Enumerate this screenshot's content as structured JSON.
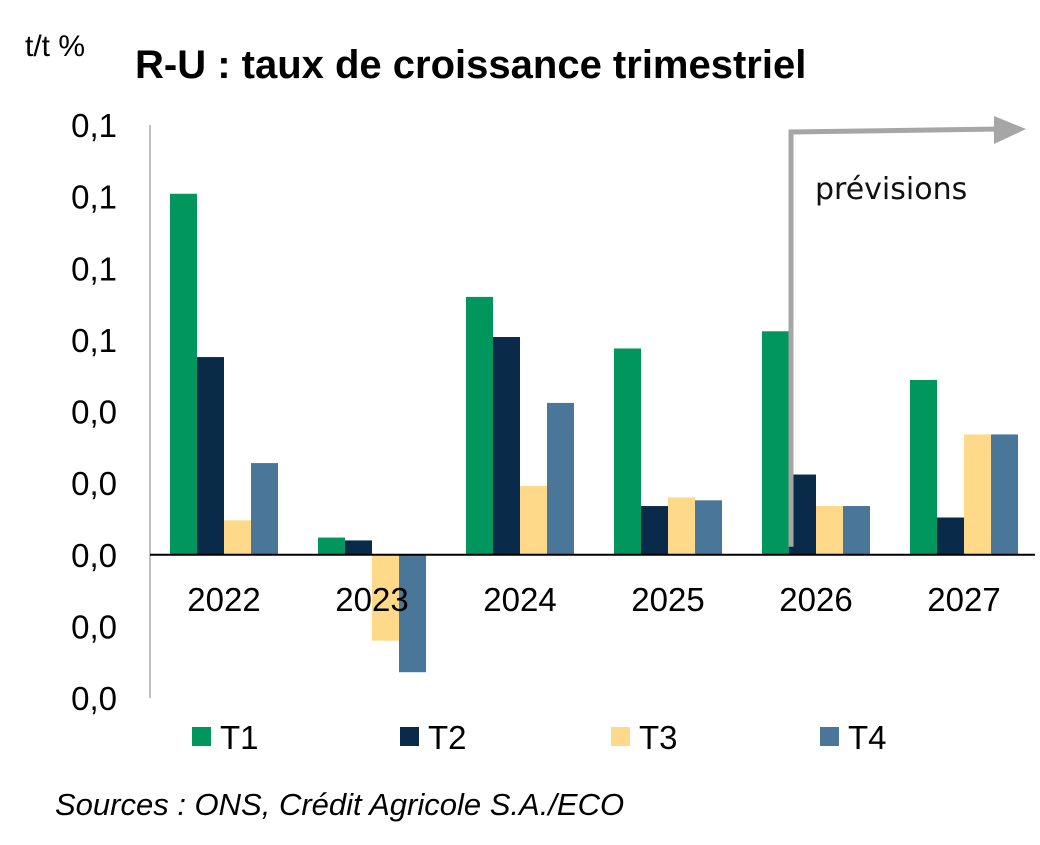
{
  "chart_data": {
    "type": "bar",
    "title": "R-U : taux de croissance trimestriel",
    "unit_label": "t/t %",
    "categories": [
      "2022",
      "2023",
      "2024",
      "2025",
      "2026",
      "2027"
    ],
    "series": [
      {
        "name": "T1",
        "color": "#00965E",
        "values": [
          0.126,
          0.006,
          0.09,
          0.072,
          0.078,
          0.061
        ]
      },
      {
        "name": "T2",
        "color": "#0A2A4A",
        "values": [
          0.069,
          0.005,
          0.076,
          0.017,
          0.028,
          0.013
        ]
      },
      {
        "name": "T3",
        "color": "#FFD98A",
        "values": [
          0.012,
          -0.03,
          0.024,
          0.02,
          0.017,
          0.042
        ]
      },
      {
        "name": "T4",
        "color": "#4A7699",
        "values": [
          0.032,
          -0.041,
          0.053,
          0.019,
          0.017,
          0.042
        ]
      }
    ],
    "ylim": [
      -0.05,
      0.15
    ],
    "yticks": [
      0.15,
      0.125,
      0.1,
      0.075,
      0.05,
      0.025,
      0.0,
      -0.025,
      -0.05
    ],
    "ytick_labels": [
      "0,1",
      "0,1",
      "0,1",
      "0,1",
      "0,0",
      "0,0",
      "0,0",
      "0,0",
      "0,0"
    ],
    "legend": [
      "T1",
      "T2",
      "T3",
      "T4"
    ],
    "legend_position": "bottom",
    "annotation": "prévisions",
    "forecast_from": "2026",
    "source": "Sources : ONS, Crédit Agricole S.A./ECO",
    "grid": false
  }
}
